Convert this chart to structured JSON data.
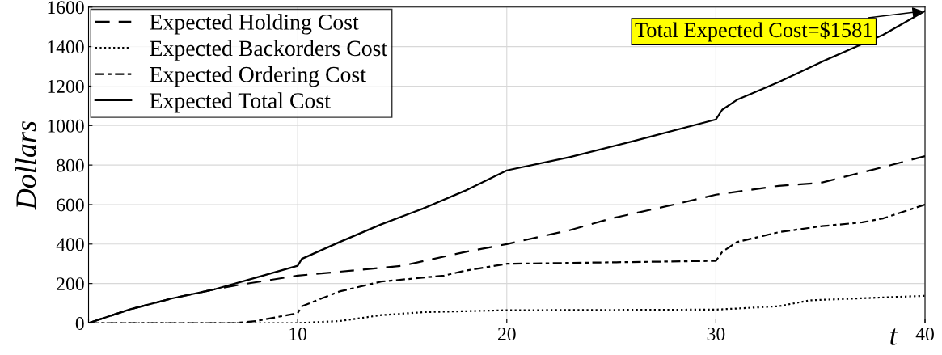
{
  "chart_data": {
    "type": "line",
    "xlabel": "t",
    "ylabel": "Dollars",
    "xlim": [
      0,
      40
    ],
    "ylim": [
      0,
      1600
    ],
    "xticks": [
      {
        "value": 0,
        "label": null
      },
      10,
      20,
      30,
      40
    ],
    "yticks": [
      0,
      200,
      400,
      600,
      800,
      1000,
      1200,
      1400,
      1600
    ],
    "grid": true,
    "legend": "top left",
    "marker": "none",
    "series": [
      {
        "name": "Expected Holding Cost",
        "color": "#000000",
        "line_style": "dashed",
        "x": [
          0,
          2,
          4,
          6,
          7,
          10,
          15,
          18,
          20,
          23,
          25,
          28,
          30,
          33,
          35,
          38,
          40
        ],
        "values": [
          0,
          70,
          125,
          170,
          190,
          240,
          290,
          360,
          400,
          470,
          530,
          600,
          650,
          695,
          710,
          790,
          845
        ]
      },
      {
        "name": "Expected Backorders Cost",
        "color": "#000000",
        "line_style": "dotted",
        "x": [
          0,
          10,
          12,
          14,
          16,
          20,
          30,
          33,
          34.5,
          40
        ],
        "values": [
          0,
          0,
          10,
          40,
          55,
          65,
          68,
          85,
          115,
          138
        ]
      },
      {
        "name": "Expected Ordering Cost",
        "color": "#000000",
        "line_style": "dashdot",
        "x": [
          0,
          7,
          8,
          10,
          10.2,
          12,
          14,
          17,
          18,
          20,
          30,
          30.3,
          31,
          33,
          35,
          37,
          38,
          40
        ],
        "values": [
          0,
          0,
          10,
          50,
          85,
          160,
          210,
          240,
          265,
          300,
          315,
          360,
          410,
          460,
          490,
          510,
          530,
          600
        ]
      },
      {
        "name": "Expected Total Cost",
        "color": "#000000",
        "line_style": "solid",
        "x": [
          0,
          2,
          4,
          6,
          8,
          10,
          10.2,
          12,
          14,
          16,
          18,
          20,
          23,
          26,
          30,
          30.3,
          31,
          33,
          35,
          38,
          40
        ],
        "values": [
          0,
          70,
          125,
          170,
          230,
          290,
          325,
          410,
          500,
          580,
          670,
          773,
          840,
          920,
          1031,
          1080,
          1130,
          1220,
          1320,
          1460,
          1581
        ]
      }
    ],
    "annotations": [
      {
        "text": "Total Expected Cost=$1581",
        "x": 40,
        "y": 1581
      }
    ]
  }
}
